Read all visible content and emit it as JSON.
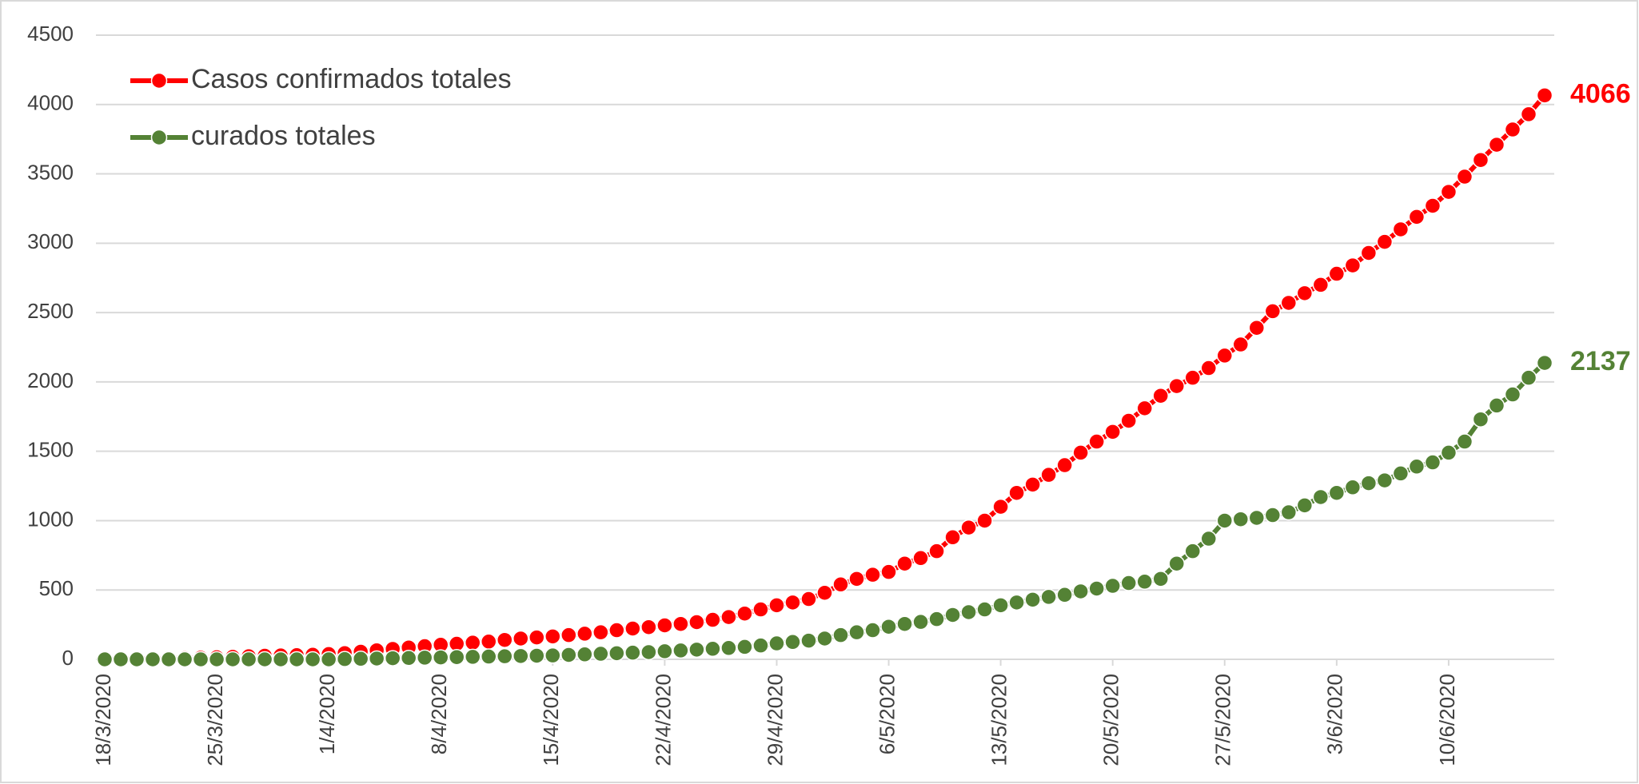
{
  "chart_data": {
    "type": "line",
    "categories": [
      "18/3/2020",
      null,
      null,
      null,
      null,
      null,
      null,
      "25/3/2020",
      null,
      null,
      null,
      null,
      null,
      null,
      "1/4/2020",
      null,
      null,
      null,
      null,
      null,
      null,
      "8/4/2020",
      null,
      null,
      null,
      null,
      null,
      null,
      "15/4/2020",
      null,
      null,
      null,
      null,
      null,
      null,
      "22/4/2020",
      null,
      null,
      null,
      null,
      null,
      null,
      "29/4/2020",
      null,
      null,
      null,
      null,
      null,
      null,
      "6/5/2020",
      null,
      null,
      null,
      null,
      null,
      null,
      "13/5/2020",
      null,
      null,
      null,
      null,
      null,
      null,
      "20/5/2020",
      null,
      null,
      null,
      null,
      null,
      null,
      "27/5/2020",
      null,
      null,
      null,
      null,
      null,
      null,
      "3/6/2020",
      null,
      null,
      null,
      null,
      null,
      null,
      "10/6/2020",
      null,
      null,
      null,
      null,
      null,
      null
    ],
    "series": [
      {
        "name": "Casos confirmados totales",
        "color": "#ff0000",
        "values": [
          1,
          2,
          3,
          5,
          7,
          9,
          12,
          15,
          18,
          22,
          26,
          28,
          30,
          33,
          38,
          45,
          55,
          65,
          75,
          85,
          95,
          105,
          112,
          120,
          128,
          140,
          150,
          158,
          165,
          175,
          185,
          195,
          210,
          222,
          232,
          245,
          255,
          268,
          285,
          305,
          330,
          360,
          390,
          410,
          435,
          480,
          540,
          580,
          610,
          630,
          690,
          730,
          780,
          880,
          950,
          1000,
          1100,
          1200,
          1260,
          1330,
          1400,
          1490,
          1570,
          1640,
          1720,
          1810,
          1900,
          1970,
          2030,
          2100,
          2190,
          2270,
          2390,
          2510,
          2570,
          2640,
          2700,
          2780,
          2840,
          2930,
          3010,
          3100,
          3190,
          3270,
          3370,
          3480,
          3600,
          3710,
          3820,
          3930,
          4066
        ]
      },
      {
        "name": "curados totales",
        "color": "#548235",
        "values": [
          0,
          0,
          0,
          0,
          0,
          0,
          0,
          0,
          0,
          0,
          0,
          0,
          0,
          0,
          0,
          2,
          4,
          6,
          8,
          10,
          12,
          14,
          16,
          18,
          20,
          22,
          24,
          26,
          28,
          32,
          36,
          40,
          44,
          48,
          52,
          58,
          64,
          70,
          76,
          82,
          90,
          100,
          115,
          125,
          135,
          150,
          175,
          195,
          210,
          235,
          255,
          270,
          290,
          320,
          340,
          360,
          390,
          410,
          430,
          450,
          465,
          490,
          510,
          530,
          550,
          560,
          580,
          690,
          780,
          870,
          1000,
          1010,
          1020,
          1040,
          1060,
          1110,
          1170,
          1200,
          1240,
          1270,
          1290,
          1340,
          1390,
          1420,
          1490,
          1570,
          1730,
          1830,
          1910,
          2030,
          2137
        ]
      }
    ],
    "ylim": [
      0,
      4500
    ],
    "yticks": [
      0,
      500,
      1000,
      1500,
      2000,
      2500,
      3000,
      3500,
      4000,
      4500
    ],
    "grid": true,
    "legend": "top-left"
  }
}
